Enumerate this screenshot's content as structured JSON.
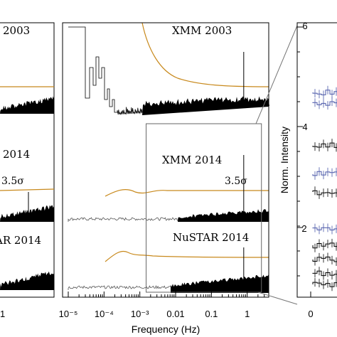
{
  "colors": {
    "orange": "#c8891c",
    "black": "#000000",
    "gray": "#555555",
    "blue": "#4a57a8"
  },
  "chart_data": [
    {
      "type": "line",
      "panel": "left (partially visible)",
      "rows": [
        {
          "label": "2003",
          "ref_curve": "orange"
        },
        {
          "label": "2014",
          "threshold_label": "3.5σ"
        },
        {
          "label": "AR 2014"
        }
      ],
      "x_tick_labels": [
        "1"
      ]
    },
    {
      "type": "line",
      "panel": "center",
      "xlabel": "Frequency (Hz)",
      "xscale": "log",
      "xlim": [
        1e-05,
        4
      ],
      "x_tick_labels": [
        "10⁻⁵",
        "10⁻⁴",
        "10⁻³",
        "0.01",
        "0.1",
        "1"
      ],
      "rows": [
        {
          "label": "XMM 2003",
          "pulse_line_freq": 0.8
        },
        {
          "label": "XMM 2014",
          "threshold_label": "3.5σ",
          "pulse_line_freq": 0.8
        },
        {
          "label": "NuSTAR 2014",
          "pulse_line_freq": 0.8
        }
      ],
      "zoom_box_x": [
        0.0015,
        2.5
      ]
    },
    {
      "type": "line",
      "panel": "right (partially visible)",
      "ylabel": "Norm. Intensity",
      "y_tick_labels": [
        "2",
        "4",
        "6"
      ],
      "x_tick_labels": [
        "0"
      ]
    }
  ]
}
